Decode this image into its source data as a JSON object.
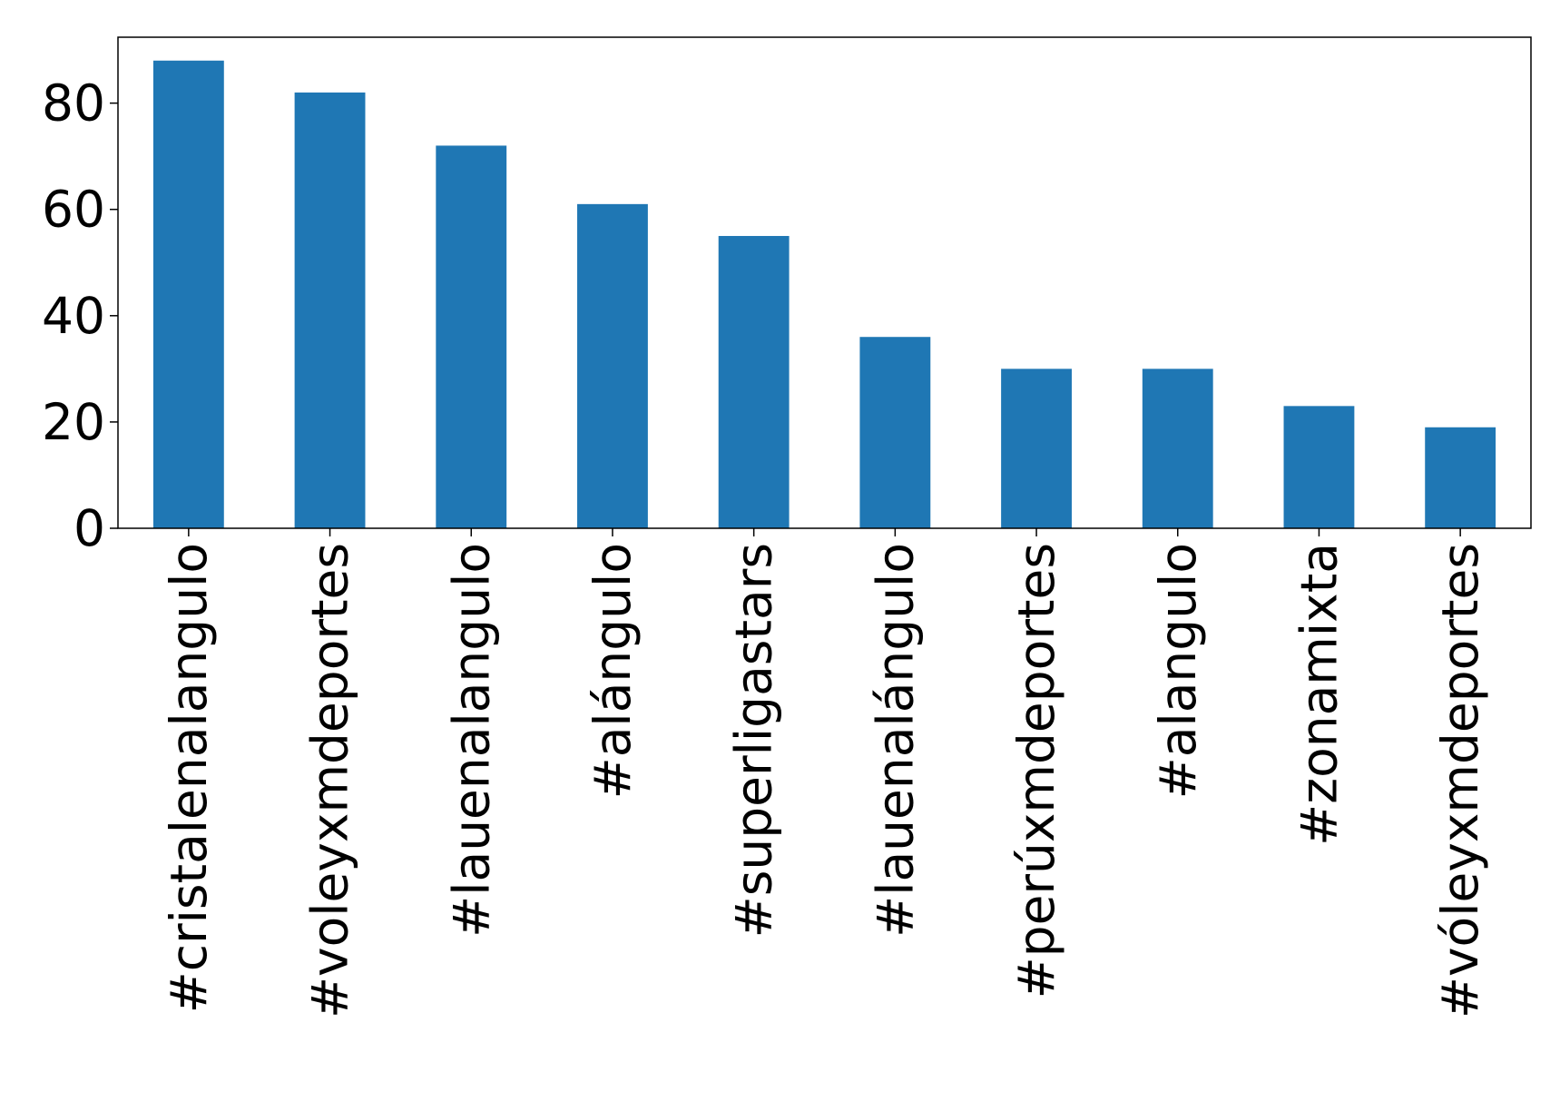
{
  "chart_data": {
    "type": "bar",
    "categories": [
      "#cristalenalangulo",
      "#voleyxmdeportes",
      "#lauenalangulo",
      "#alángulo",
      "#superligastars",
      "#lauenalángulo",
      "#perúxmdeportes",
      "#alangulo",
      "#zonamixta",
      "#vóleyxmdeportes"
    ],
    "values": [
      88,
      82,
      72,
      61,
      55,
      36,
      30,
      30,
      23,
      19
    ],
    "color": "#1f77b4",
    "ylim": [
      0,
      92.4
    ],
    "yticks": [
      0,
      20,
      40,
      60,
      80
    ],
    "grid": false
  }
}
